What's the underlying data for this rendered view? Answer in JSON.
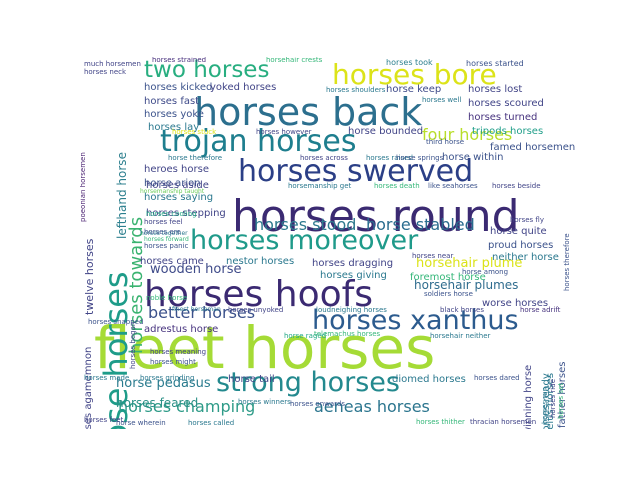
{
  "words": [
    {
      "text": "fleet horses",
      "color": "#a5db36",
      "size": 58,
      "vertical": false
    },
    {
      "text": "horses round",
      "color": "#3b2a72",
      "size": 44,
      "vertical": false
    },
    {
      "text": "horses back",
      "color": "#2c6f8e",
      "size": 38,
      "vertical": false
    },
    {
      "text": "horses hoofs",
      "color": "#3b2a72",
      "size": 36,
      "vertical": false
    },
    {
      "text": "whose horses",
      "color": "#1e9c89",
      "size": 32,
      "vertical": true
    },
    {
      "text": "horses swerved",
      "color": "#2b3f86",
      "size": 30,
      "vertical": false
    },
    {
      "text": "trojan horses",
      "color": "#1e7e8e",
      "size": 30,
      "vertical": false
    },
    {
      "text": "horses bore",
      "color": "#dce319",
      "size": 28,
      "vertical": false
    },
    {
      "text": "horses moreover",
      "color": "#1f9a8a",
      "size": 27,
      "vertical": false
    },
    {
      "text": "horses xanthus",
      "color": "#2c5b8e",
      "size": 27,
      "vertical": false
    },
    {
      "text": "strong horses",
      "color": "#23898e",
      "size": 27,
      "vertical": false
    },
    {
      "text": "two horses",
      "color": "#28ae80",
      "size": 23,
      "vertical": false
    },
    {
      "text": "horses towards",
      "color": "#3ab370",
      "size": 18,
      "vertical": true
    },
    {
      "text": "horses stood",
      "color": "#2e7a8e",
      "size": 16,
      "vertical": false
    },
    {
      "text": "horse stabled",
      "color": "#2a6c8e",
      "size": 16,
      "vertical": false
    },
    {
      "text": "four horses",
      "color": "#b8de29",
      "size": 16,
      "vertical": false
    },
    {
      "text": "better horses",
      "color": "#3b518b",
      "size": 16,
      "vertical": false
    },
    {
      "text": "horses champing",
      "color": "#2e9b88",
      "size": 16,
      "vertical": false
    },
    {
      "text": "aeneas horses",
      "color": "#2b758e",
      "size": 16,
      "vertical": false
    },
    {
      "text": "wooden horse",
      "color": "#3e4a89",
      "size": 13,
      "vertical": false
    },
    {
      "text": "horsehair plume",
      "color": "#dbe319",
      "size": 13,
      "vertical": false
    },
    {
      "text": "horse pedasus",
      "color": "#2a7b8e",
      "size": 13,
      "vertical": false
    },
    {
      "text": "horsehair plumes",
      "color": "#2f6c8e",
      "size": 12,
      "vertical": false
    },
    {
      "text": "horses feared",
      "color": "#2a9086",
      "size": 12,
      "vertical": false
    },
    {
      "text": "lefthand horse",
      "color": "#2c7f8e",
      "size": 12,
      "vertical": true
    },
    {
      "text": "twelve horses",
      "color": "#414487",
      "size": 11,
      "vertical": true
    },
    {
      "text": "horses agamemnon",
      "color": "#414487",
      "size": 10,
      "vertical": true
    },
    {
      "text": "horses strained",
      "color": "#472f7d",
      "size": 7,
      "vertical": false
    },
    {
      "text": "horsehair crests",
      "color": "#35b779",
      "size": 7,
      "vertical": false
    },
    {
      "text": "horses took",
      "color": "#2c7f8e",
      "size": 8,
      "vertical": false
    },
    {
      "text": "horses started",
      "color": "#3b528b",
      "size": 8,
      "vertical": false
    },
    {
      "text": "much horsemen",
      "color": "#414487",
      "size": 7,
      "vertical": false
    },
    {
      "text": "horses neck",
      "color": "#414487",
      "size": 7,
      "vertical": false
    },
    {
      "text": "poeonian horsemen",
      "color": "#481f70",
      "size": 7,
      "vertical": true
    },
    {
      "text": "horses kicked",
      "color": "#3b528b",
      "size": 10,
      "vertical": false
    },
    {
      "text": "yoked horses",
      "color": "#414487",
      "size": 10,
      "vertical": false
    },
    {
      "text": "horses shoulders",
      "color": "#2a788e",
      "size": 7,
      "vertical": false
    },
    {
      "text": "horse keep",
      "color": "#3e4a89",
      "size": 10,
      "vertical": false
    },
    {
      "text": "horses lost",
      "color": "#414487",
      "size": 10,
      "vertical": false
    },
    {
      "text": "horses fast",
      "color": "#3e4a89",
      "size": 10,
      "vertical": false
    },
    {
      "text": "horses yoke",
      "color": "#3b528b",
      "size": 10,
      "vertical": false
    },
    {
      "text": "horses well",
      "color": "#2a788e",
      "size": 7,
      "vertical": false
    },
    {
      "text": "horses scoured",
      "color": "#414487",
      "size": 10,
      "vertical": false
    },
    {
      "text": "horses turned",
      "color": "#46327e",
      "size": 10,
      "vertical": false
    },
    {
      "text": "horses lay",
      "color": "#2a788e",
      "size": 10,
      "vertical": false
    },
    {
      "text": "tripods horses",
      "color": "#1f9e89",
      "size": 10,
      "vertical": false
    },
    {
      "text": "horses stuck",
      "color": "#dce319",
      "size": 7,
      "vertical": false
    },
    {
      "text": "horses however",
      "color": "#414487",
      "size": 7,
      "vertical": false
    },
    {
      "text": "horse bounded",
      "color": "#414487",
      "size": 10,
      "vertical": false
    },
    {
      "text": "third horse",
      "color": "#3b528b",
      "size": 7,
      "vertical": false
    },
    {
      "text": "famed horsemen",
      "color": "#3b528b",
      "size": 10,
      "vertical": false
    },
    {
      "text": "horse therefore",
      "color": "#2a788e",
      "size": 7,
      "vertical": false
    },
    {
      "text": "horses across",
      "color": "#414487",
      "size": 7,
      "vertical": false
    },
    {
      "text": "horses raised",
      "color": "#2a788e",
      "size": 7,
      "vertical": false
    },
    {
      "text": "horse springs",
      "color": "#3b528b",
      "size": 7,
      "vertical": false
    },
    {
      "text": "horse within",
      "color": "#3b528b",
      "size": 10,
      "vertical": false
    },
    {
      "text": "heroes horse",
      "color": "#414487",
      "size": 10,
      "vertical": false
    },
    {
      "text": "horse arion",
      "color": "#3b528b",
      "size": 10,
      "vertical": false
    },
    {
      "text": "horses aside",
      "color": "#414487",
      "size": 10,
      "vertical": false
    },
    {
      "text": "horsemanship get",
      "color": "#2a788e",
      "size": 7,
      "vertical": false
    },
    {
      "text": "horses death",
      "color": "#35b779",
      "size": 7,
      "vertical": false
    },
    {
      "text": "like seahorses",
      "color": "#3b528b",
      "size": 7,
      "vertical": false
    },
    {
      "text": "horses beside",
      "color": "#414487",
      "size": 7,
      "vertical": false
    },
    {
      "text": "horsemanship taught",
      "color": "#6ccd5a",
      "size": 6,
      "vertical": false
    },
    {
      "text": "horses saying",
      "color": "#2a788e",
      "size": 10,
      "vertical": false
    },
    {
      "text": "horses stepping",
      "color": "#414487",
      "size": 10,
      "vertical": false
    },
    {
      "text": "horses cooling",
      "color": "#22a884",
      "size": 7,
      "vertical": false
    },
    {
      "text": "horses feel",
      "color": "#414487",
      "size": 7,
      "vertical": false
    },
    {
      "text": "horses together",
      "color": "#2a788e",
      "size": 6,
      "vertical": false
    },
    {
      "text": "horses ere",
      "color": "#3b528b",
      "size": 7,
      "vertical": false
    },
    {
      "text": "horses forward",
      "color": "#35b779",
      "size": 6,
      "vertical": false
    },
    {
      "text": "horses panic",
      "color": "#3b528b",
      "size": 7,
      "vertical": false
    },
    {
      "text": "horses fly",
      "color": "#414487",
      "size": 7,
      "vertical": false
    },
    {
      "text": "horse quite",
      "color": "#414487",
      "size": 10,
      "vertical": false
    },
    {
      "text": "proud horses",
      "color": "#3b528b",
      "size": 10,
      "vertical": false
    },
    {
      "text": "neither horse",
      "color": "#2a788e",
      "size": 10,
      "vertical": false
    },
    {
      "text": "horses came",
      "color": "#414487",
      "size": 10,
      "vertical": false
    },
    {
      "text": "nestor horses",
      "color": "#2a788e",
      "size": 10,
      "vertical": false
    },
    {
      "text": "horses dragging",
      "color": "#414487",
      "size": 10,
      "vertical": false
    },
    {
      "text": "horses near",
      "color": "#414487",
      "size": 7,
      "vertical": false
    },
    {
      "text": "horses giving",
      "color": "#2a788e",
      "size": 10,
      "vertical": false
    },
    {
      "text": "foremost horse",
      "color": "#35b779",
      "size": 10,
      "vertical": false
    },
    {
      "text": "horse among",
      "color": "#3b528b",
      "size": 7,
      "vertical": false
    },
    {
      "text": "horses began",
      "color": "#414487",
      "size": 7,
      "vertical": true
    },
    {
      "text": "soldiers horse",
      "color": "#3b528b",
      "size": 7,
      "vertical": false
    },
    {
      "text": "worse horses",
      "color": "#414487",
      "size": 10,
      "vertical": false
    },
    {
      "text": "adrestus horse",
      "color": "#46327e",
      "size": 10,
      "vertical": false
    },
    {
      "text": "finest horseman",
      "color": "#2a788e",
      "size": 6,
      "vertical": false
    },
    {
      "text": "horses unyoked",
      "color": "#414487",
      "size": 7,
      "vertical": false
    },
    {
      "text": "loudneighing horses",
      "color": "#2a788e",
      "size": 7,
      "vertical": false
    },
    {
      "text": "black horses",
      "color": "#414487",
      "size": 7,
      "vertical": false
    },
    {
      "text": "horse adrift",
      "color": "#46327e",
      "size": 7,
      "vertical": false
    },
    {
      "text": "noble horse",
      "color": "#35b779",
      "size": 7,
      "vertical": false
    },
    {
      "text": "horses snapped",
      "color": "#3b528b",
      "size": 7,
      "vertical": false
    },
    {
      "text": "horse raged",
      "color": "#22a884",
      "size": 7,
      "vertical": false
    },
    {
      "text": "telemachus horses",
      "color": "#35b779",
      "size": 7,
      "vertical": false
    },
    {
      "text": "horsehair neither",
      "color": "#2a788e",
      "size": 7,
      "vertical": false
    },
    {
      "text": "horses meaning",
      "color": "#414487",
      "size": 7,
      "vertical": false
    },
    {
      "text": "horses might",
      "color": "#3b528b",
      "size": 7,
      "vertical": false
    },
    {
      "text": "horse tail",
      "color": "#414487",
      "size": 10,
      "vertical": false
    },
    {
      "text": "diomed horses",
      "color": "#2a788e",
      "size": 10,
      "vertical": false
    },
    {
      "text": "horses dared",
      "color": "#3b528b",
      "size": 7,
      "vertical": false
    },
    {
      "text": "horses grinding",
      "color": "#2a788e",
      "size": 7,
      "vertical": false
    },
    {
      "text": "horses made",
      "color": "#2a788e",
      "size": 7,
      "vertical": false
    },
    {
      "text": "horses winners",
      "color": "#2a788e",
      "size": 7,
      "vertical": false
    },
    {
      "text": "horses onwards",
      "color": "#3b528b",
      "size": 7,
      "vertical": false
    },
    {
      "text": "horses feet",
      "color": "#414487",
      "size": 7,
      "vertical": false
    },
    {
      "text": "horse wherein",
      "color": "#3b528b",
      "size": 7,
      "vertical": false
    },
    {
      "text": "horses called",
      "color": "#2a788e",
      "size": 7,
      "vertical": false
    },
    {
      "text": "horses thither",
      "color": "#35b779",
      "size": 7,
      "vertical": false
    },
    {
      "text": "thracian horsemen",
      "color": "#414487",
      "size": 7,
      "vertical": false
    },
    {
      "text": "winning horse",
      "color": "#414487",
      "size": 10,
      "vertical": true
    },
    {
      "text": "horses ready",
      "color": "#2a788e",
      "size": 10,
      "vertical": true
    },
    {
      "text": "father horses",
      "color": "#3b528b",
      "size": 10,
      "vertical": true
    },
    {
      "text": "eumelus horses",
      "color": "#2a788e",
      "size": 10,
      "vertical": true
    },
    {
      "text": "horses therefore",
      "color": "#3b528b",
      "size": 7,
      "vertical": true
    },
    {
      "text": "horses set",
      "color": "#35b779",
      "size": 7,
      "vertical": true
    },
    {
      "text": "horses ride",
      "color": "#414487",
      "size": 7,
      "vertical": true
    },
    {
      "text": "horses run",
      "color": "#2a788e",
      "size": 7,
      "vertical": true
    }
  ]
}
